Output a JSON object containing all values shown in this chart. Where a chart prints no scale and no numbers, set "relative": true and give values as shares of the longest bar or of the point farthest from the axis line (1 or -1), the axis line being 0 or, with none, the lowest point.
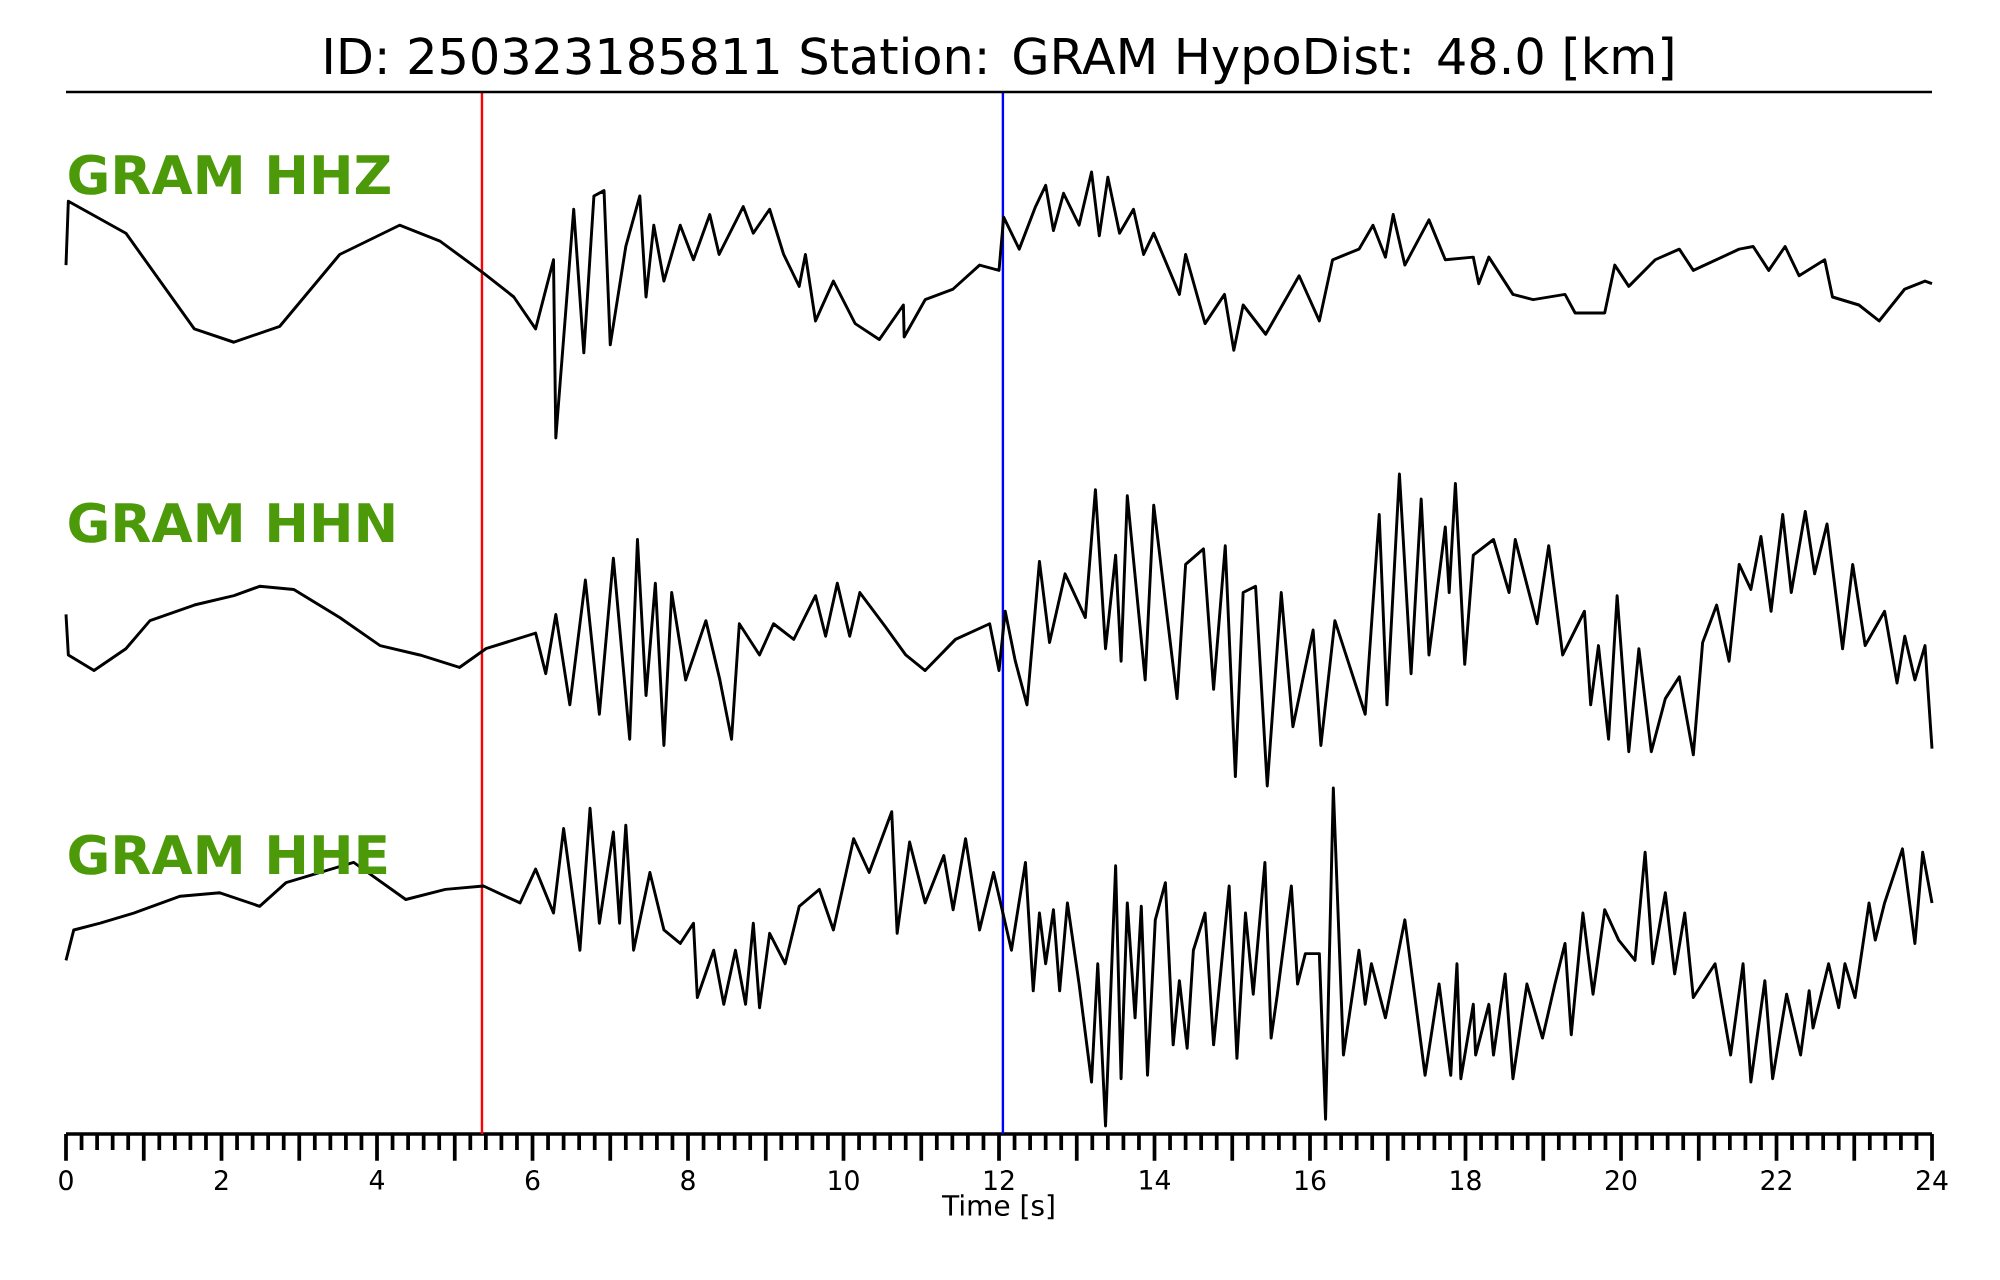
{
  "chart_data": [
    {
      "type": "line",
      "title": "ID: 250323185811   Station: GRAM   HypoDist:    48.0 [km]",
      "relative": true,
      "xlim": [
        0,
        24
      ],
      "tick_labels": false,
      "ref_lines": [
        {
          "axis": "x",
          "value": 5.35,
          "color": "#ff0000"
        },
        {
          "axis": "x",
          "value": 12.05,
          "color": "#0000ff"
        }
      ],
      "x": [
        0,
        0.03,
        0.77,
        1.65,
        2.16,
        2.75,
        3.52,
        4.29,
        4.81,
        5.37,
        5.76,
        6.04,
        6.27,
        6.3,
        6.53,
        6.66,
        6.79,
        6.92,
        7.0,
        7.2,
        7.38,
        7.46,
        7.56,
        7.69,
        7.9,
        8.07,
        8.28,
        8.4,
        8.71,
        8.84,
        9.05,
        9.23,
        9.43,
        9.51,
        9.64,
        9.87,
        10.15,
        10.46,
        10.77,
        10.78,
        11.05,
        11.41,
        11.75,
        12.0,
        12.06,
        12.26,
        12.47,
        12.6,
        12.7,
        12.83,
        13.03,
        13.19,
        13.29,
        13.4,
        13.55,
        13.73,
        13.86,
        13.99,
        14.32,
        14.4,
        14.65,
        14.9,
        15.02,
        15.14,
        15.43,
        15.86,
        16.12,
        16.29,
        16.63,
        16.81,
        16.97,
        17.07,
        17.22,
        17.53,
        17.74,
        18.1,
        18.17,
        18.3,
        18.61,
        18.87,
        19.28,
        19.41,
        19.79,
        19.92,
        20.1,
        20.44,
        20.75,
        20.93,
        21.52,
        21.7,
        21.9,
        22.11,
        22.29,
        22.62,
        22.72,
        23.06,
        23.32,
        23.65,
        23.91,
        24
      ],
      "series": [
        {
          "name": "GRAM HHZ",
          "color": "#000000",
          "values": [
            0.65,
            0.89,
            0.77,
            0.41,
            0.36,
            0.42,
            0.69,
            0.8,
            0.74,
            0.62,
            0.53,
            0.41,
            0.67,
            0,
            0.86,
            0.32,
            0.91,
            0.93,
            0.35,
            0.72,
            0.91,
            0.53,
            0.8,
            0.59,
            0.8,
            0.67,
            0.84,
            0.69,
            0.87,
            0.77,
            0.86,
            0.69,
            0.57,
            0.69,
            0.44,
            0.59,
            0.43,
            0.37,
            0.5,
            0.38,
            0.52,
            0.56,
            0.65,
            0.63,
            0.83,
            0.71,
            0.87,
            0.95,
            0.78,
            0.92,
            0.8,
            1,
            0.76,
            0.98,
            0.77,
            0.86,
            0.69,
            0.77,
            0.54,
            0.69,
            0.43,
            0.54,
            0.33,
            0.5,
            0.39,
            0.61,
            0.44,
            0.67,
            0.71,
            0.8,
            0.68,
            0.84,
            0.65,
            0.82,
            0.67,
            0.68,
            0.58,
            0.68,
            0.54,
            0.52,
            0.54,
            0.47,
            0.47,
            0.65,
            0.57,
            0.67,
            0.71,
            0.63,
            0.71,
            0.72,
            0.63,
            0.72,
            0.61,
            0.67,
            0.53,
            0.5,
            0.44,
            0.56,
            0.59,
            0.58
          ]
        }
      ]
    },
    {
      "type": "line",
      "relative": true,
      "xlim": [
        0,
        24
      ],
      "tick_labels": false,
      "ref_lines": [
        {
          "axis": "x",
          "value": 5.35,
          "color": "#ff0000"
        },
        {
          "axis": "x",
          "value": 12.05,
          "color": "#0000ff"
        }
      ],
      "x": [
        0,
        0.03,
        0.36,
        0.77,
        1.08,
        1.65,
        2.16,
        2.49,
        2.93,
        3.52,
        4.04,
        4.55,
        5.06,
        5.4,
        6.04,
        6.17,
        6.3,
        6.48,
        6.68,
        6.86,
        7.04,
        7.25,
        7.35,
        7.46,
        7.58,
        7.69,
        7.79,
        7.97,
        8.23,
        8.41,
        8.56,
        8.66,
        8.92,
        9.1,
        9.36,
        9.64,
        9.77,
        9.92,
        10.08,
        10.21,
        10.54,
        10.8,
        11.05,
        11.44,
        11.88,
        12.0,
        12.08,
        12.21,
        12.36,
        12.52,
        12.65,
        12.85,
        13.11,
        13.24,
        13.37,
        13.5,
        13.57,
        13.65,
        13.88,
        13.99,
        14.29,
        14.4,
        14.63,
        14.76,
        14.91,
        15.04,
        15.14,
        15.3,
        15.45,
        15.63,
        15.78,
        16.04,
        16.14,
        16.32,
        16.71,
        16.89,
        16.99,
        17.15,
        17.3,
        17.43,
        17.53,
        17.74,
        17.79,
        17.87,
        17.99,
        18.1,
        18.36,
        18.56,
        18.64,
        18.92,
        19.07,
        19.25,
        19.53,
        19.61,
        19.71,
        19.84,
        19.95,
        20.1,
        20.23,
        20.39,
        20.57,
        20.75,
        20.93,
        21.05,
        21.23,
        21.39,
        21.52,
        21.67,
        21.8,
        21.93,
        22.08,
        22.19,
        22.37,
        22.49,
        22.65,
        22.85,
        22.98,
        23.14,
        23.39,
        23.55,
        23.65,
        23.78,
        23.91,
        24
      ],
      "series": [
        {
          "name": "GRAM HHN",
          "color": "#000000",
          "values": [
            0.55,
            0.42,
            0.37,
            0.44,
            0.53,
            0.58,
            0.61,
            0.64,
            0.63,
            0.54,
            0.45,
            0.42,
            0.38,
            0.44,
            0.49,
            0.36,
            0.55,
            0.26,
            0.66,
            0.23,
            0.73,
            0.15,
            0.79,
            0.29,
            0.65,
            0.13,
            0.62,
            0.34,
            0.53,
            0.34,
            0.15,
            0.52,
            0.42,
            0.52,
            0.47,
            0.61,
            0.48,
            0.65,
            0.48,
            0.62,
            0.51,
            0.42,
            0.37,
            0.47,
            0.52,
            0.37,
            0.56,
            0.4,
            0.26,
            0.72,
            0.46,
            0.68,
            0.54,
            0.95,
            0.44,
            0.74,
            0.4,
            0.93,
            0.34,
            0.9,
            0.28,
            0.71,
            0.76,
            0.31,
            0.77,
            0.03,
            0.62,
            0.64,
            0,
            0.62,
            0.19,
            0.5,
            0.13,
            0.53,
            0.23,
            0.87,
            0.26,
            1,
            0.36,
            0.92,
            0.42,
            0.83,
            0.62,
            0.97,
            0.39,
            0.74,
            0.79,
            0.62,
            0.79,
            0.52,
            0.77,
            0.42,
            0.56,
            0.26,
            0.45,
            0.15,
            0.61,
            0.11,
            0.44,
            0.11,
            0.28,
            0.35,
            0.1,
            0.46,
            0.58,
            0.4,
            0.71,
            0.63,
            0.8,
            0.56,
            0.87,
            0.62,
            0.88,
            0.68,
            0.84,
            0.44,
            0.71,
            0.45,
            0.56,
            0.33,
            0.48,
            0.34,
            0.45,
            0.12
          ]
        }
      ]
    },
    {
      "type": "line",
      "xlabel": "Time [s]",
      "relative": true,
      "xlim": [
        0,
        24
      ],
      "xticks": [
        0,
        {
          "value": 1,
          "label": null
        },
        2,
        {
          "value": 3,
          "label": null
        },
        4,
        {
          "value": 5,
          "label": null
        },
        6,
        {
          "value": 7,
          "label": null
        },
        8,
        {
          "value": 9,
          "label": null
        },
        10,
        {
          "value": 11,
          "label": null
        },
        12,
        {
          "value": 13,
          "label": null
        },
        14,
        {
          "value": 15,
          "label": null
        },
        16,
        {
          "value": 17,
          "label": null
        },
        18,
        {
          "value": 19,
          "label": null
        },
        20,
        {
          "value": 21,
          "label": null
        },
        22,
        {
          "value": 23,
          "label": null
        },
        24
      ],
      "tick_labels": "x",
      "ref_lines": [
        {
          "axis": "x",
          "value": 5.35,
          "color": "#ff0000"
        },
        {
          "axis": "x",
          "value": 12.05,
          "color": "#0000ff"
        }
      ],
      "x": [
        0,
        0.1,
        0.44,
        0.87,
        1.47,
        1.98,
        2.49,
        2.83,
        3.7,
        4.37,
        4.88,
        5.37,
        5.84,
        6.04,
        6.27,
        6.4,
        6.61,
        6.74,
        6.86,
        7.04,
        7.12,
        7.2,
        7.3,
        7.51,
        7.69,
        7.9,
        8.07,
        8.12,
        8.33,
        8.46,
        8.61,
        8.74,
        8.84,
        8.92,
        9.05,
        9.25,
        9.43,
        9.69,
        9.87,
        10.13,
        10.33,
        10.62,
        10.69,
        10.85,
        11.05,
        11.29,
        11.41,
        11.57,
        11.75,
        11.93,
        12.08,
        12.16,
        12.34,
        12.44,
        12.52,
        12.6,
        12.7,
        12.78,
        12.88,
        13.03,
        13.19,
        13.27,
        13.37,
        13.5,
        13.57,
        13.65,
        13.75,
        13.83,
        13.91,
        14.01,
        14.14,
        14.24,
        14.32,
        14.42,
        14.5,
        14.65,
        14.76,
        14.96,
        15.06,
        15.17,
        15.27,
        15.42,
        15.5,
        15.58,
        15.76,
        15.84,
        15.94,
        16.12,
        16.2,
        16.3,
        16.43,
        16.63,
        16.71,
        16.79,
        16.97,
        17.22,
        17.48,
        17.66,
        17.81,
        17.89,
        17.94,
        18.1,
        18.13,
        18.3,
        18.36,
        18.51,
        18.61,
        18.79,
        18.99,
        19.15,
        19.28,
        19.36,
        19.51,
        19.64,
        19.79,
        19.97,
        20.18,
        20.31,
        20.41,
        20.57,
        20.69,
        20.82,
        20.93,
        21.21,
        21.41,
        21.57,
        21.67,
        21.85,
        21.95,
        22.13,
        22.31,
        22.42,
        22.47,
        22.67,
        22.8,
        22.88,
        23.01,
        23.19,
        23.27,
        23.39,
        23.62,
        23.78,
        23.88,
        24
      ],
      "series": [
        {
          "name": "GRAM HHE",
          "color": "#000000",
          "values": [
            0.49,
            0.58,
            0.6,
            0.63,
            0.68,
            0.69,
            0.65,
            0.72,
            0.78,
            0.67,
            0.7,
            0.71,
            0.66,
            0.76,
            0.63,
            0.88,
            0.52,
            0.94,
            0.6,
            0.87,
            0.6,
            0.89,
            0.52,
            0.75,
            0.58,
            0.54,
            0.6,
            0.38,
            0.52,
            0.36,
            0.52,
            0.36,
            0.6,
            0.35,
            0.57,
            0.48,
            0.65,
            0.7,
            0.58,
            0.85,
            0.75,
            0.93,
            0.57,
            0.84,
            0.66,
            0.8,
            0.64,
            0.85,
            0.58,
            0.75,
            0.6,
            0.52,
            0.78,
            0.4,
            0.63,
            0.48,
            0.64,
            0.4,
            0.66,
            0.42,
            0.13,
            0.48,
            0,
            0.77,
            0.14,
            0.66,
            0.32,
            0.65,
            0.15,
            0.61,
            0.72,
            0.24,
            0.43,
            0.23,
            0.52,
            0.63,
            0.24,
            0.71,
            0.2,
            0.63,
            0.39,
            0.78,
            0.26,
            0.39,
            0.71,
            0.42,
            0.51,
            0.51,
            0.02,
            1,
            0.21,
            0.52,
            0.36,
            0.48,
            0.32,
            0.61,
            0.15,
            0.42,
            0.15,
            0.48,
            0.14,
            0.36,
            0.21,
            0.36,
            0.21,
            0.45,
            0.14,
            0.42,
            0.26,
            0.42,
            0.54,
            0.27,
            0.63,
            0.39,
            0.64,
            0.55,
            0.49,
            0.81,
            0.48,
            0.69,
            0.45,
            0.63,
            0.38,
            0.48,
            0.21,
            0.48,
            0.13,
            0.43,
            0.14,
            0.39,
            0.21,
            0.4,
            0.29,
            0.48,
            0.35,
            0.48,
            0.38,
            0.66,
            0.55,
            0.66,
            0.82,
            0.54,
            0.81,
            0.66
          ]
        }
      ]
    }
  ]
}
